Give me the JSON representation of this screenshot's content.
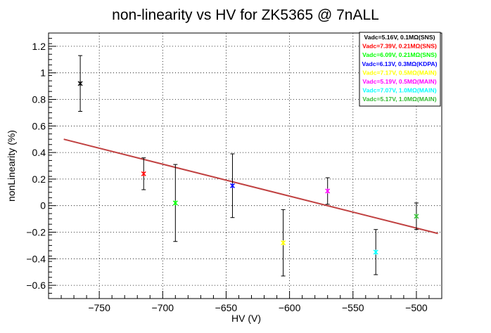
{
  "chart_data": {
    "type": "scatter",
    "title": "non-linearity vs HV for ZK5365 @ 7nALL",
    "xlabel": "HV (V)",
    "ylabel": "nonLinearity (%)",
    "xlim": [
      -790,
      -480
    ],
    "ylim": [
      -0.7,
      1.3
    ],
    "xticks": [
      -750,
      -700,
      -650,
      -600,
      -550,
      -500
    ],
    "yticks": [
      -0.6,
      -0.4,
      -0.2,
      0,
      0.2,
      0.4,
      0.6,
      0.8,
      1,
      1.2
    ],
    "grid": true,
    "legend_position": "top-right",
    "series": [
      {
        "name": "Vadc=5.16V, 0.1MΩ(SNS)",
        "color": "#000000",
        "x": -765,
        "y": 0.92,
        "err": 0.21
      },
      {
        "name": "Vadc=7.39V, 0.21MΩ(SNS)",
        "color": "#ff0000",
        "x": -715,
        "y": 0.24,
        "err": 0.12
      },
      {
        "name": "Vadc=6.09V, 0.21MΩ(SNS)",
        "color": "#00ff00",
        "x": -690,
        "y": 0.02,
        "err": 0.29
      },
      {
        "name": "Vadc=6.13V, 0.3MΩ(KDPA)",
        "color": "#0000ff",
        "x": -645,
        "y": 0.15,
        "err": 0.24
      },
      {
        "name": "Vadc=7.17V, 0.5MΩ(MAIN)",
        "color": "#ffff00",
        "x": -605,
        "y": -0.28,
        "err": 0.25
      },
      {
        "name": "Vadc=5.19V, 0.5MΩ(MAIN)",
        "color": "#ff00ff",
        "x": -570,
        "y": 0.11,
        "err": 0.1
      },
      {
        "name": "Vadc=7.07V, 1.0MΩ(MAIN)",
        "color": "#00ffff",
        "x": -532,
        "y": -0.35,
        "err": 0.17
      },
      {
        "name": "Vadc=5.17V, 1.0MΩ(MAIN)",
        "color": "#33bb33",
        "x": -500,
        "y": -0.08,
        "err": 0.1
      }
    ],
    "fit": {
      "color": "#c04040",
      "x": [
        -778,
        -483
      ],
      "y": [
        0.5,
        -0.21
      ]
    }
  }
}
